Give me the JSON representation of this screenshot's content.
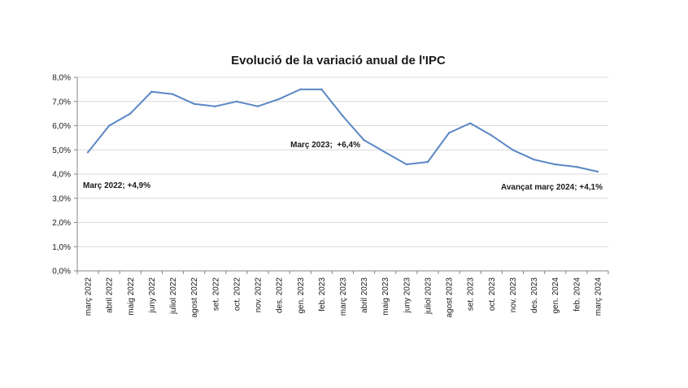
{
  "chart_data": {
    "type": "line",
    "title": "Evolució de la variació anual de l'IPC",
    "xlabel": "",
    "ylabel": "",
    "ylim": [
      0,
      8
    ],
    "yticks": [
      "0,0%",
      "1,0%",
      "2,0%",
      "3,0%",
      "4,0%",
      "5,0%",
      "6,0%",
      "7,0%",
      "8,0%"
    ],
    "categories": [
      "març 2022",
      "abril 2022",
      "maig 2022",
      "juny 2022",
      "juliol 2022",
      "agost 2022",
      "set. 2022",
      "oct. 2022",
      "nov. 2022",
      "des. 2022",
      "gen. 2023",
      "feb. 2023",
      "març 2023",
      "abril 2023",
      "maig 2023",
      "juny 2023",
      "juliol 2023",
      "agost 2023",
      "set. 2023",
      "oct. 2023",
      "nov. 2023",
      "des. 2023",
      "gen. 2024",
      "feb. 2024",
      "març 2024"
    ],
    "series": [
      {
        "values": [
          4.9,
          6.0,
          6.5,
          7.4,
          7.3,
          6.9,
          6.8,
          7.0,
          6.8,
          7.1,
          7.5,
          7.5,
          6.4,
          5.4,
          4.9,
          4.4,
          4.5,
          5.7,
          6.1,
          5.6,
          5.0,
          4.6,
          4.4,
          4.3,
          4.1
        ],
        "color": "#5b87c5"
      }
    ],
    "annotations": [
      {
        "text": "Març 2022; +4,9%"
      },
      {
        "text": "Març 2023;  +6,4%"
      },
      {
        "text": "Avançat març 2024; +4,1%"
      }
    ],
    "grid": true,
    "legend": "none"
  }
}
